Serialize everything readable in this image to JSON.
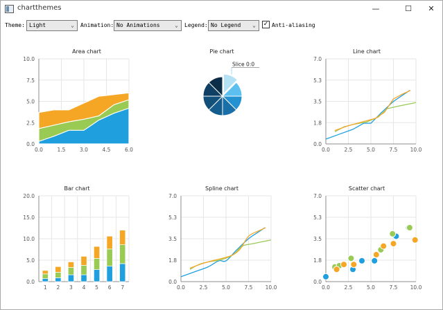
{
  "window": {
    "title": "chartthemes",
    "minimize": "—",
    "maximize": "☐",
    "close": "✕"
  },
  "toolbar": {
    "theme_label": "Theme:",
    "theme_value": "Light",
    "animation_label": "Animation:",
    "animation_value": "No Animations",
    "legend_label": "Legend:",
    "legend_value": "No Legend",
    "antialias_label": "Anti-aliasing",
    "antialias_checked": true
  },
  "colors": {
    "blue": "#209fdf",
    "green": "#99ca53",
    "orange": "#f6a625",
    "grid": "#e6e6e6",
    "axis": "#8c8c8c"
  },
  "chart_data": [
    {
      "type": "area",
      "title": "Area chart",
      "x": [
        0,
        1,
        2,
        3,
        4,
        5,
        6
      ],
      "series": [
        {
          "values": [
            0.3,
            0.9,
            1.6,
            1.6,
            2.8,
            3.6,
            4.2
          ]
        },
        {
          "values": [
            1.8,
            2.2,
            2.6,
            2.9,
            3.3,
            4.6,
            5.2
          ]
        },
        {
          "values": [
            3.7,
            4.0,
            4.0,
            4.8,
            5.6,
            5.8,
            6.0
          ]
        }
      ],
      "xticks": [
        "0.0",
        "1.5",
        "3.0",
        "4.5",
        "6.0"
      ],
      "yticks": [
        "0.0",
        "2.5",
        "5.0",
        "7.5",
        "10.0"
      ],
      "xlim": [
        0,
        6
      ],
      "ylim": [
        0,
        10
      ]
    },
    {
      "type": "pie",
      "title": "Pie chart",
      "label": "Slice 0:0",
      "values": [
        1,
        1,
        1,
        1,
        1,
        1,
        1,
        1
      ],
      "colors": [
        "#b5e1f5",
        "#5dbff0",
        "#2491d0",
        "#1a6fa9",
        "#155d8d",
        "#124f79",
        "#0f3f62",
        "#0c2d47"
      ]
    },
    {
      "type": "line",
      "title": "Line chart",
      "series": [
        {
          "points": [
            [
              0,
              0.4
            ],
            [
              1.5,
              0.8
            ],
            [
              3,
              1.2
            ],
            [
              4.2,
              1.7
            ],
            [
              5,
              1.7
            ],
            [
              6.2,
              2.6
            ],
            [
              7.5,
              3.5
            ],
            [
              8.5,
              4.0
            ],
            [
              9.3,
              4.4
            ]
          ]
        },
        {
          "points": [
            [
              1,
              1.0
            ],
            [
              2,
              1.4
            ],
            [
              3,
              1.6
            ],
            [
              4.5,
              1.8
            ],
            [
              5.8,
              2.2
            ],
            [
              6.8,
              2.9
            ],
            [
              8,
              3.1
            ],
            [
              10,
              3.4
            ]
          ]
        },
        {
          "points": [
            [
              1,
              1.1
            ],
            [
              2.5,
              1.5
            ],
            [
              4,
              1.8
            ],
            [
              5.5,
              2.1
            ],
            [
              6.5,
              2.6
            ],
            [
              7.5,
              3.7
            ],
            [
              8.5,
              4.1
            ],
            [
              9.4,
              4.4
            ]
          ]
        }
      ],
      "xticks": [
        "0.0",
        "2.5",
        "5.0",
        "7.5",
        "10.0"
      ],
      "yticks": [
        "0.0",
        "1.8",
        "3.5",
        "5.3",
        "7.0"
      ],
      "xlim": [
        0,
        10
      ],
      "ylim": [
        0,
        7
      ]
    },
    {
      "type": "bar",
      "title": "Bar chart",
      "stacked": true,
      "categories": [
        "1",
        "2",
        "3",
        "4",
        "5",
        "6",
        "7"
      ],
      "series": [
        {
          "values": [
            0.7,
            0.9,
            1.6,
            1.6,
            2.8,
            3.6,
            4.2
          ]
        },
        {
          "values": [
            1.1,
            1.3,
            1.7,
            2.2,
            2.6,
            4.0,
            4.4
          ]
        },
        {
          "values": [
            0.8,
            1.3,
            1.3,
            2.1,
            2.8,
            3.0,
            3.4
          ]
        }
      ],
      "xticks": [
        "1",
        "2",
        "3",
        "4",
        "5",
        "6",
        "7"
      ],
      "yticks": [
        "0.0",
        "5.0",
        "10.0",
        "15.0",
        "20.0"
      ],
      "ylim": [
        0,
        20
      ]
    },
    {
      "type": "line",
      "title": "Spline chart",
      "smooth": true,
      "series": [
        {
          "points": [
            [
              0,
              0.4
            ],
            [
              1.5,
              0.8
            ],
            [
              3,
              1.2
            ],
            [
              4.2,
              1.7
            ],
            [
              5,
              1.7
            ],
            [
              6.2,
              2.6
            ],
            [
              7.5,
              3.5
            ],
            [
              8.5,
              4.0
            ],
            [
              9.3,
              4.4
            ]
          ]
        },
        {
          "points": [
            [
              1,
              1.0
            ],
            [
              2,
              1.4
            ],
            [
              3,
              1.6
            ],
            [
              4.5,
              1.8
            ],
            [
              5.8,
              2.2
            ],
            [
              6.8,
              2.9
            ],
            [
              8,
              3.1
            ],
            [
              10,
              3.4
            ]
          ]
        },
        {
          "points": [
            [
              1,
              1.1
            ],
            [
              2.5,
              1.5
            ],
            [
              4,
              1.8
            ],
            [
              5.5,
              2.1
            ],
            [
              6.5,
              2.6
            ],
            [
              7.5,
              3.7
            ],
            [
              8.5,
              4.1
            ],
            [
              9.4,
              4.4
            ]
          ]
        }
      ],
      "xticks": [
        "0.0",
        "2.5",
        "5.0",
        "7.5",
        "10.0"
      ],
      "yticks": [
        "0.0",
        "1.8",
        "3.5",
        "5.3",
        "7.0"
      ],
      "xlim": [
        0,
        10
      ],
      "ylim": [
        0,
        7
      ]
    },
    {
      "type": "scatter",
      "title": "Scatter chart",
      "series": [
        {
          "points": [
            [
              0,
              0.4
            ],
            [
              3,
              1.0
            ],
            [
              4,
              1.7
            ],
            [
              5.4,
              1.7
            ],
            [
              7.8,
              3.7
            ],
            [
              9.2,
              4.4
            ]
          ]
        },
        {
          "points": [
            [
              1,
              1.2
            ],
            [
              1.5,
              1.3
            ],
            [
              2.8,
              1.9
            ],
            [
              6.1,
              2.6
            ],
            [
              7.4,
              3.9
            ],
            [
              9.3,
              4.4
            ]
          ]
        },
        {
          "points": [
            [
              1.2,
              1.0
            ],
            [
              2,
              1.4
            ],
            [
              3.1,
              1.4
            ],
            [
              5.6,
              2.2
            ],
            [
              6.4,
              2.9
            ],
            [
              7.5,
              3.1
            ],
            [
              9.9,
              3.4
            ]
          ]
        }
      ],
      "xticks": [
        "0.0",
        "2.5",
        "5.0",
        "7.5",
        "10.0"
      ],
      "yticks": [
        "0.0",
        "1.8",
        "3.5",
        "5.3",
        "7.0"
      ],
      "xlim": [
        0,
        10
      ],
      "ylim": [
        0,
        7
      ]
    }
  ]
}
